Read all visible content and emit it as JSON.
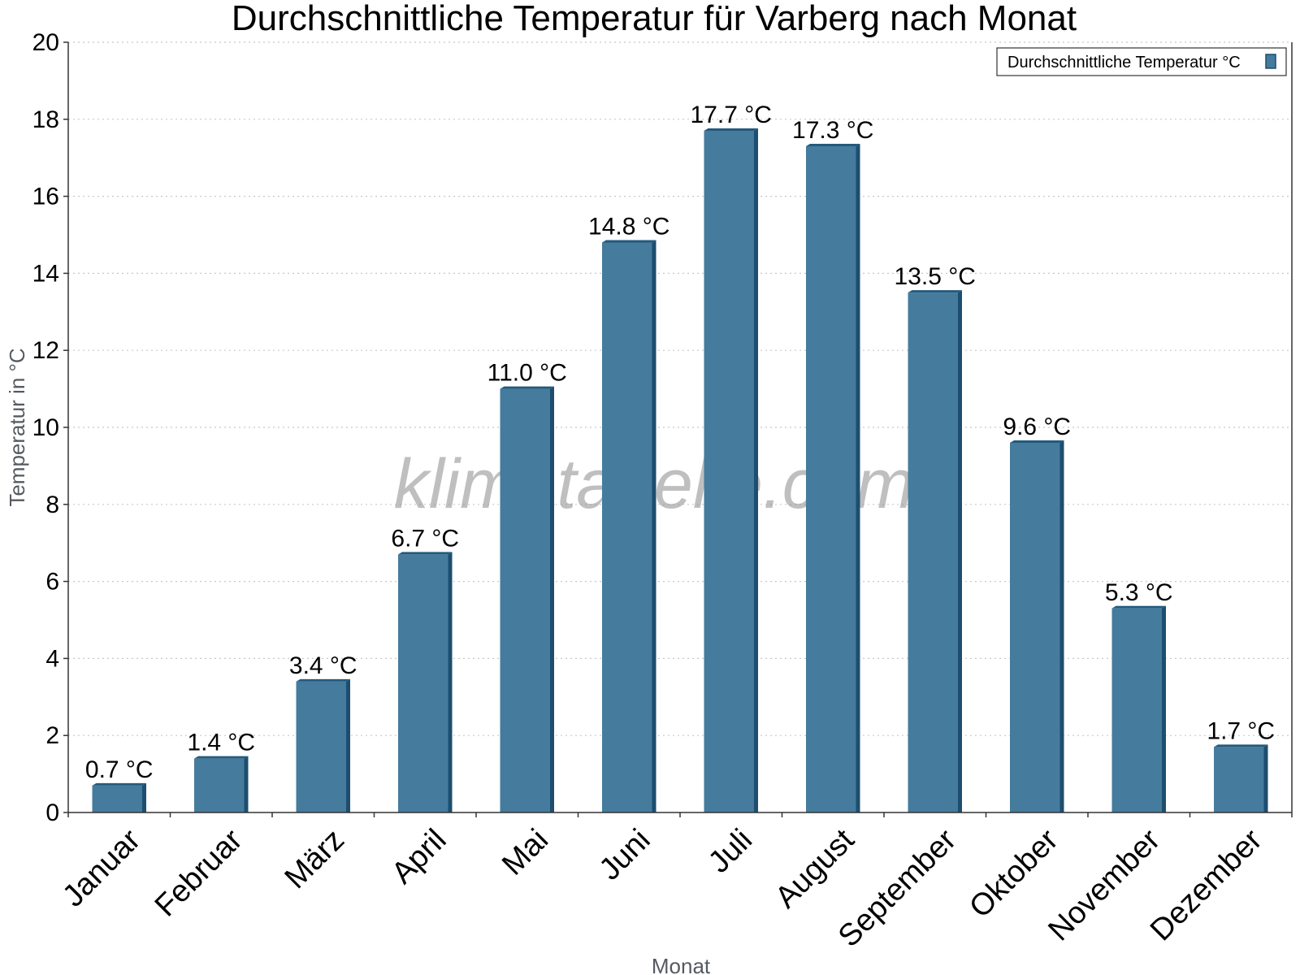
{
  "chart_data": {
    "type": "bar",
    "title": "Durchschnittliche Temperatur für Varberg nach Monat",
    "xlabel": "Monat",
    "ylabel": "Temperatur in °C",
    "categories": [
      "Januar",
      "Februar",
      "März",
      "April",
      "Mai",
      "Juni",
      "Juli",
      "August",
      "September",
      "Oktober",
      "November",
      "Dezember"
    ],
    "series": [
      {
        "name": "Durchschnittliche Temperatur °C",
        "values": [
          0.7,
          1.4,
          3.4,
          6.7,
          11.0,
          14.8,
          17.7,
          17.3,
          13.5,
          9.6,
          5.3,
          1.7
        ],
        "data_labels": [
          "0.7 °C",
          "1.4 °C",
          "3.4 °C",
          "6.7 °C",
          "11.0 °C",
          "14.8 °C",
          "17.7 °C",
          "17.3 °C",
          "13.5 °C",
          "9.6 °C",
          "5.3 °C",
          "1.7 °C"
        ]
      }
    ],
    "ylim": [
      0,
      20
    ],
    "yticks": [
      0,
      2,
      4,
      6,
      8,
      10,
      12,
      14,
      16,
      18,
      20
    ],
    "grid": true,
    "legend_position": "top-right",
    "colors": {
      "bar_face": "#457b9d",
      "bar_side": "#1d4e6f",
      "bar_top": "#245a7c"
    }
  },
  "watermark": "klimatabelle.com"
}
